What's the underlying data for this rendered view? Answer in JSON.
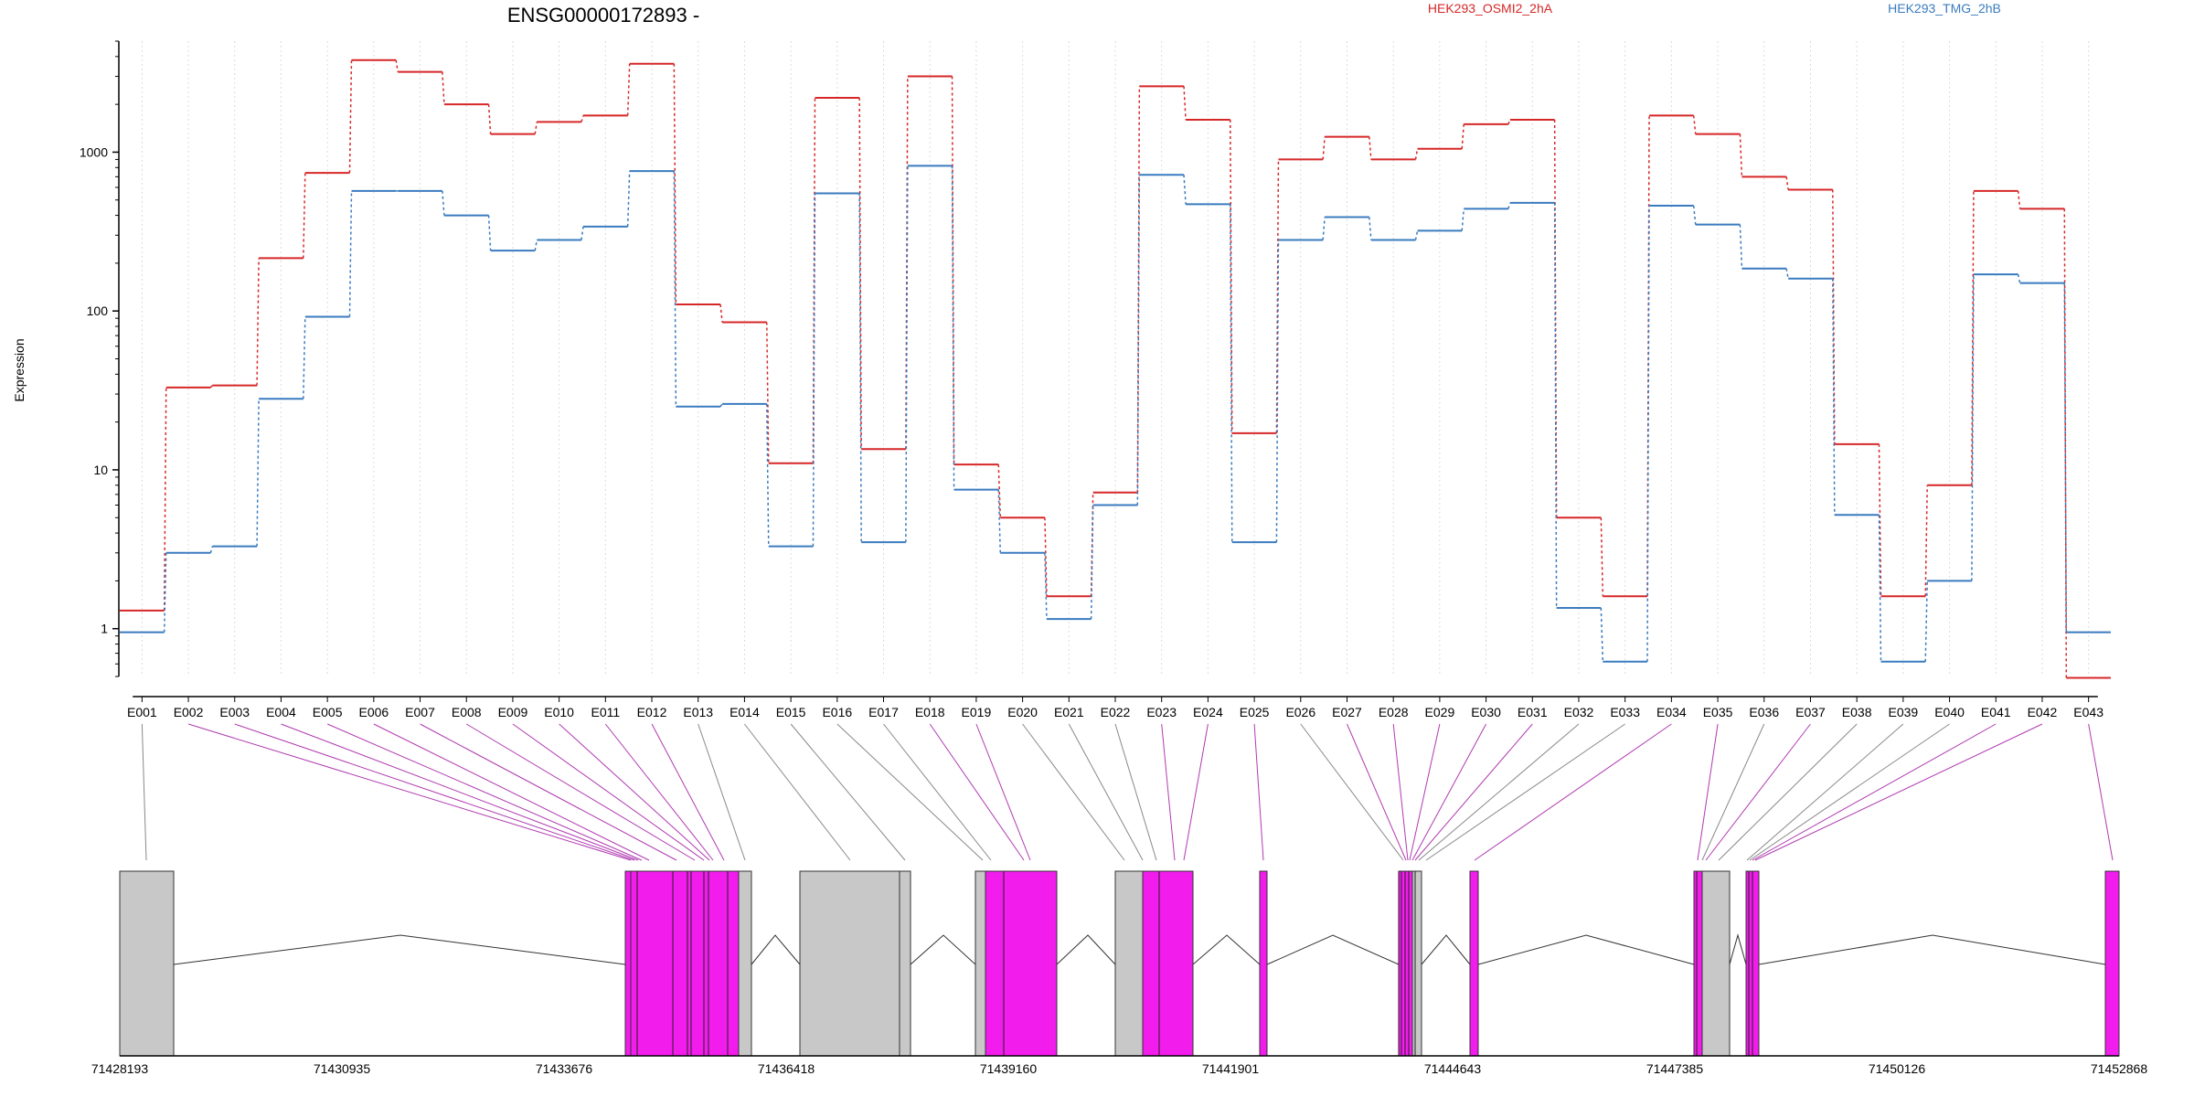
{
  "chart_data": {
    "type": "line",
    "title": "ENSG00000172893 -",
    "ylabel": "Expression",
    "y_scale": "log",
    "ylim": [
      0.5,
      5000
    ],
    "y_ticks": [
      1,
      10,
      100,
      1000
    ],
    "y_tick_labels": [
      "1",
      "10",
      "100",
      "1000"
    ],
    "grid": "vertical dotted lines at each exon",
    "legend_placement": "top",
    "categories": [
      "E001",
      "E002",
      "E003",
      "E004",
      "E005",
      "E006",
      "E007",
      "E008",
      "E009",
      "E010",
      "E011",
      "E012",
      "E013",
      "E014",
      "E015",
      "E016",
      "E017",
      "E018",
      "E019",
      "E020",
      "E021",
      "E022",
      "E023",
      "E024",
      "E025",
      "E026",
      "E027",
      "E028",
      "E029",
      "E030",
      "E031",
      "E032",
      "E033",
      "E034",
      "E035",
      "E036",
      "E037",
      "E038",
      "E039",
      "E040",
      "E041",
      "E042",
      "E043"
    ],
    "series": [
      {
        "name": "HEK293_OSMI2_2hA",
        "color": "#d62728",
        "values": [
          1.3,
          33,
          34,
          215,
          740,
          3800,
          3200,
          2000,
          1300,
          1550,
          1700,
          3600,
          110,
          85,
          11,
          2200,
          13.5,
          3000,
          10.8,
          5,
          1.6,
          7.2,
          2600,
          1600,
          17,
          900,
          1250,
          900,
          1050,
          1500,
          1600,
          5,
          1.6,
          1700,
          1300,
          700,
          580,
          14.5,
          1.6,
          8,
          570,
          440,
          0.49
        ]
      },
      {
        "name": "HEK293_TMG_2hB",
        "color": "#3a7bbf",
        "values": [
          0.95,
          3,
          3.3,
          28,
          92,
          570,
          570,
          400,
          240,
          280,
          340,
          760,
          25,
          26,
          3.3,
          550,
          3.5,
          820,
          7.5,
          3,
          1.15,
          6,
          720,
          470,
          3.5,
          280,
          390,
          280,
          320,
          440,
          480,
          1.35,
          0.62,
          460,
          350,
          185,
          160,
          5.2,
          0.62,
          2,
          170,
          150,
          0.95
        ]
      }
    ],
    "gene_axis_labels": [
      "71428193",
      "71430935",
      "71433676",
      "71436418",
      "71439160",
      "71441901",
      "71444643",
      "71447385",
      "71450126",
      "71452868"
    ],
    "exon_highlight_color": "#f21cec",
    "exon_gray_color": "#c8c8c8"
  }
}
